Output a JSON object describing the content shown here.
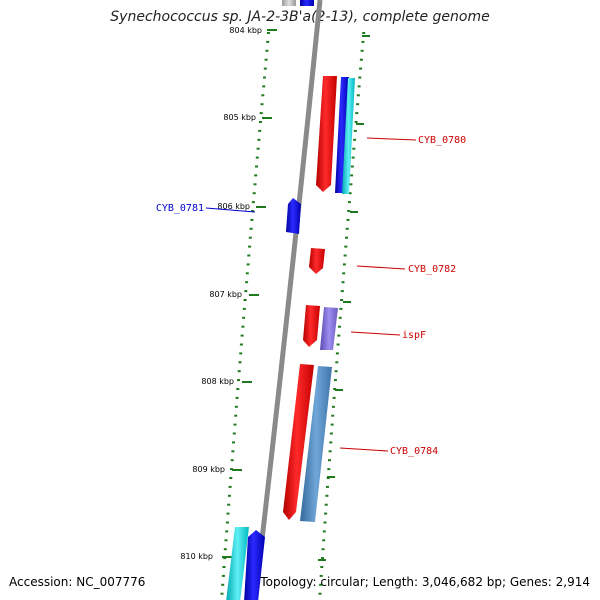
{
  "title": "Synechococcus sp. JA-2-3B'a(2-13), complete genome",
  "footer": {
    "accession": "Accession: NC_007776",
    "topology": "Topology: circular; Length: 3,046,682 bp; Genes: 2,914"
  },
  "ticks": [
    {
      "label": "804 kbp"
    },
    {
      "label": "805 kbp"
    },
    {
      "label": "806 kbp"
    },
    {
      "label": "807 kbp"
    },
    {
      "label": "808 kbp"
    },
    {
      "label": "809 kbp"
    },
    {
      "label": "810 kbp"
    }
  ],
  "genes": [
    {
      "label": "CYB_0780",
      "color": "#cc0000"
    },
    {
      "label": "CYB_0781",
      "color": "#0000cc"
    },
    {
      "label": "CYB_0782",
      "color": "#cc0000"
    },
    {
      "label": "ispF",
      "color": "#cc0000"
    },
    {
      "label": "CYB_0784",
      "color": "#cc0000"
    }
  ],
  "colors": {
    "backbone": "#808080",
    "tick_mark": "#1f7a1f",
    "feature_red": "#ff0000",
    "feature_blue": "#0000ff",
    "feature_cyan": "#00c8d0",
    "feature_purple": "#7b68c8",
    "feature_steelblue": "#4f86b8"
  }
}
